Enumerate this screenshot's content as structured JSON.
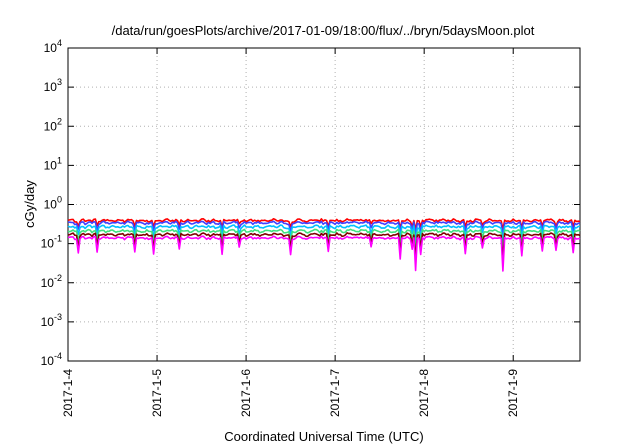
{
  "chart_data": {
    "type": "line",
    "title": "/data/run/goesPlots/archive/2017-01-09/18:00/flux/../bryn/5daysMoon.plot",
    "xlabel": "Coordinated Universal Time (UTC)",
    "ylabel": "cGy/day",
    "y_scale": "log",
    "ylim": [
      0.0001,
      10000
    ],
    "y_ticks": [
      {
        "value": 0.0001,
        "mantissa": "10",
        "exp": "-4"
      },
      {
        "value": 0.001,
        "mantissa": "10",
        "exp": "-3"
      },
      {
        "value": 0.01,
        "mantissa": "10",
        "exp": "-2"
      },
      {
        "value": 0.1,
        "mantissa": "10",
        "exp": "-1"
      },
      {
        "value": 1,
        "mantissa": "10",
        "exp": "0"
      },
      {
        "value": 10,
        "mantissa": "10",
        "exp": "1"
      },
      {
        "value": 100,
        "mantissa": "10",
        "exp": "2"
      },
      {
        "value": 1000,
        "mantissa": "10",
        "exp": "3"
      },
      {
        "value": 10000,
        "mantissa": "10",
        "exp": "4"
      }
    ],
    "x_start": "2017-01-04T00:00",
    "x_end": "2017-01-09T18:00",
    "x_ticks": [
      {
        "value": "2017-01-04T00:00",
        "label": "2017-1-4"
      },
      {
        "value": "2017-01-05T00:00",
        "label": "2017-1-5"
      },
      {
        "value": "2017-01-06T00:00",
        "label": "2017-1-6"
      },
      {
        "value": "2017-01-07T00:00",
        "label": "2017-1-7"
      },
      {
        "value": "2017-01-08T00:00",
        "label": "2017-1-8"
      },
      {
        "value": "2017-01-09T00:00",
        "label": "2017-1-9"
      }
    ],
    "grid": true,
    "series": [
      {
        "color": "#ff0000",
        "base": 0.39
      },
      {
        "color": "#4040ff",
        "base": 0.34
      },
      {
        "color": "#00c0ff",
        "base": 0.27
      },
      {
        "color": "#40e080",
        "base": 0.21
      },
      {
        "color": "#800000",
        "base": 0.17
      },
      {
        "color": "#ff00ff",
        "base": 0.14
      }
    ]
  }
}
